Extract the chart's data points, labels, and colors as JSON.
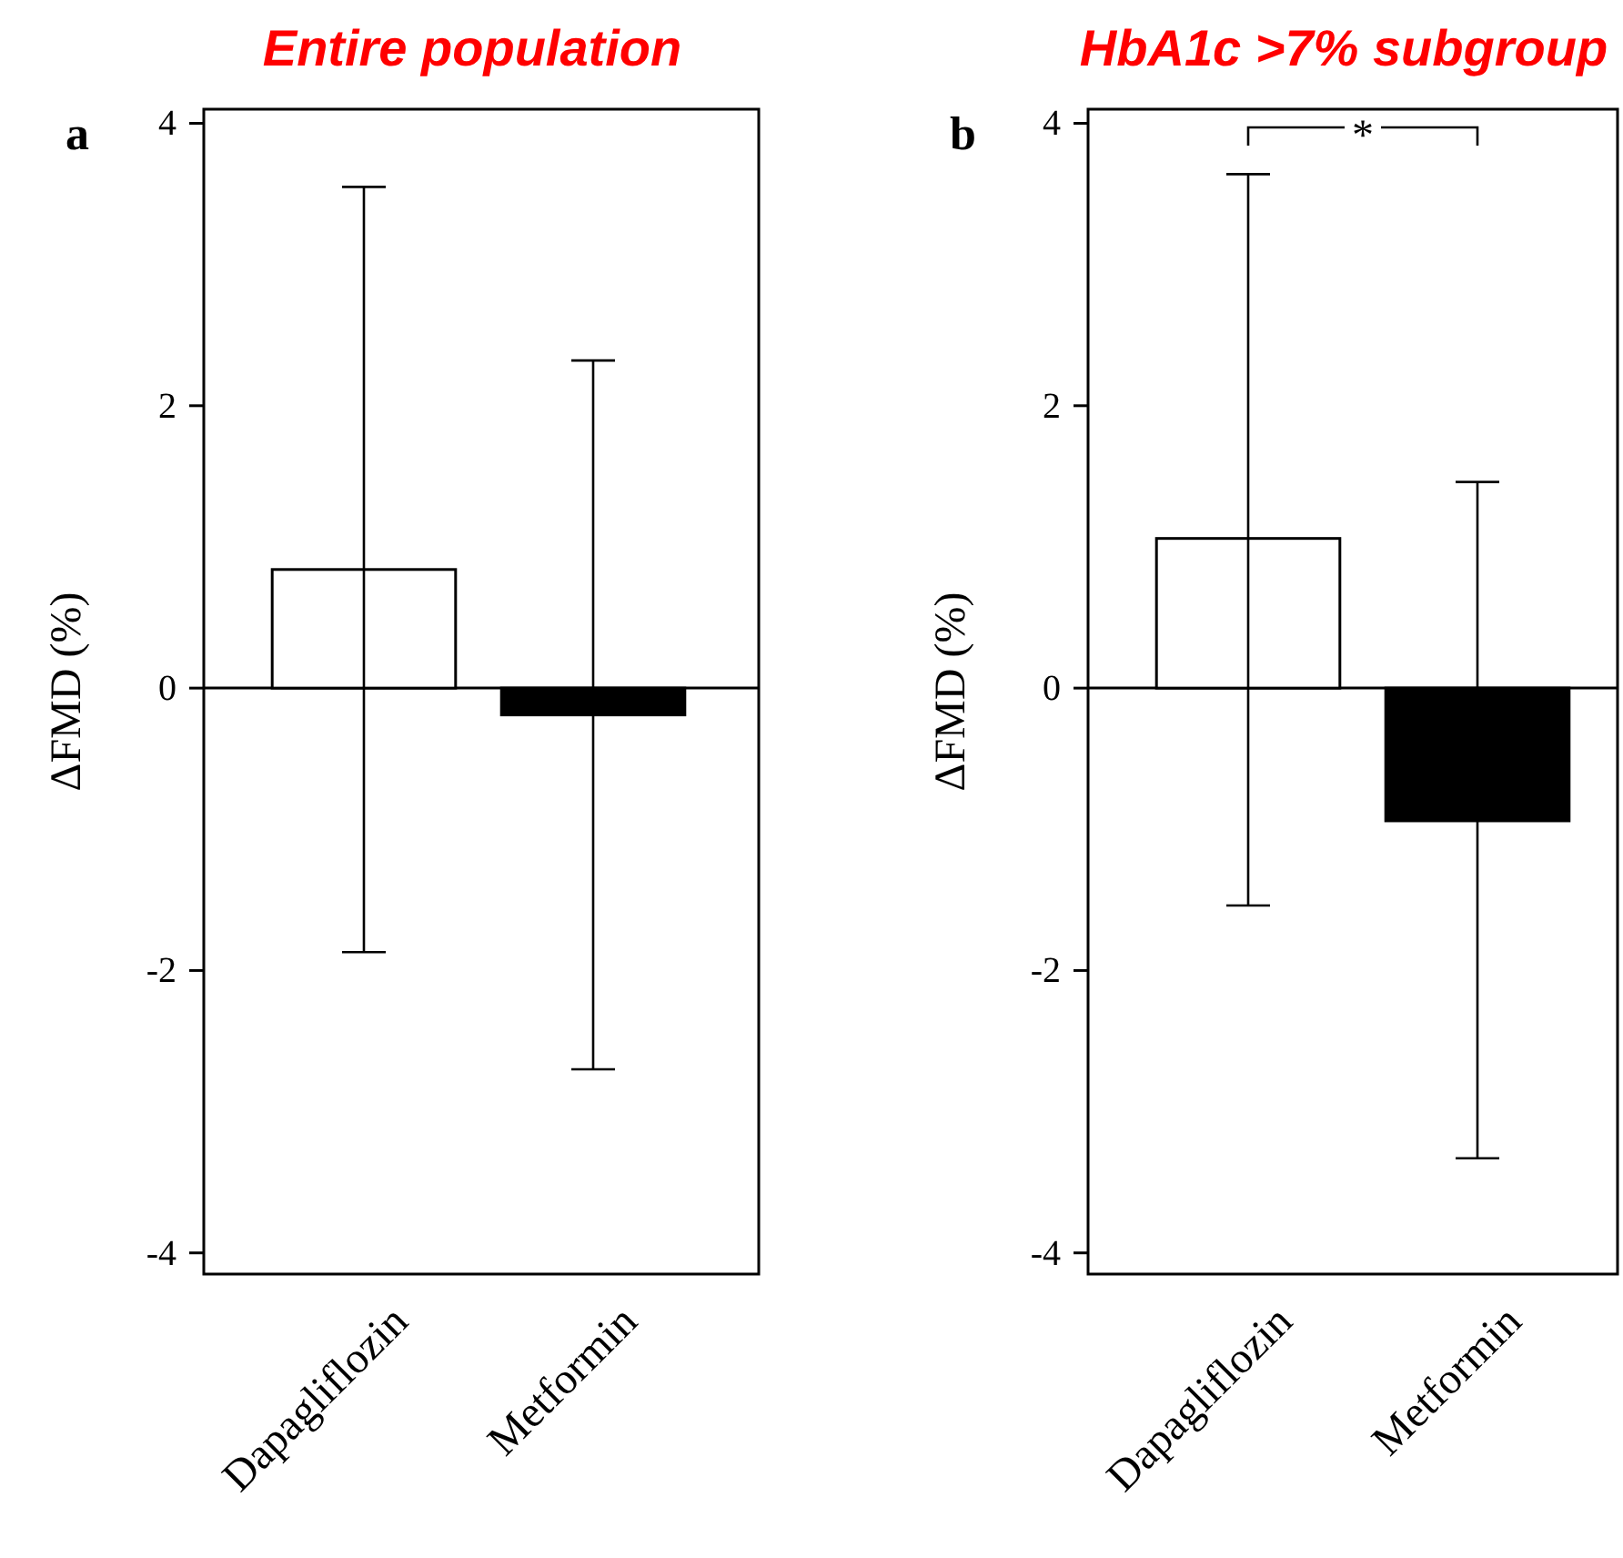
{
  "chart_data": [
    {
      "type": "bar",
      "title": "Entire population",
      "ylabel": "ΔFMD (%)",
      "categories": [
        "Dapagliflozin",
        "Metformin"
      ],
      "values": [
        0.84,
        -0.19
      ],
      "colors": [
        "#ffffff",
        "#000000"
      ],
      "errors": [
        [
          -1.87,
          3.55
        ],
        [
          -2.7,
          2.32
        ]
      ],
      "ylim": [
        -4.15,
        4.1
      ],
      "yticks": [
        4,
        2,
        0,
        -2,
        -4
      ],
      "ref_lines": [
        {
          "axis": "y",
          "value": 0
        }
      ],
      "annotations": [
        "a"
      ]
    },
    {
      "type": "bar",
      "title": "HbA1c >7% subgroup",
      "ylabel": "ΔFMD (%)",
      "categories": [
        "Dapagliflozin",
        "Metformin"
      ],
      "values": [
        1.06,
        -0.94
      ],
      "colors": [
        "#ffffff",
        "#000000"
      ],
      "errors": [
        [
          -1.54,
          3.64
        ],
        [
          -3.33,
          1.46
        ]
      ],
      "ylim": [
        -4.15,
        4.1
      ],
      "yticks": [
        4,
        2,
        0,
        -2,
        -4
      ],
      "ref_lines": [
        {
          "axis": "y",
          "value": 0
        }
      ],
      "annotations": [
        "b",
        "*"
      ]
    }
  ]
}
